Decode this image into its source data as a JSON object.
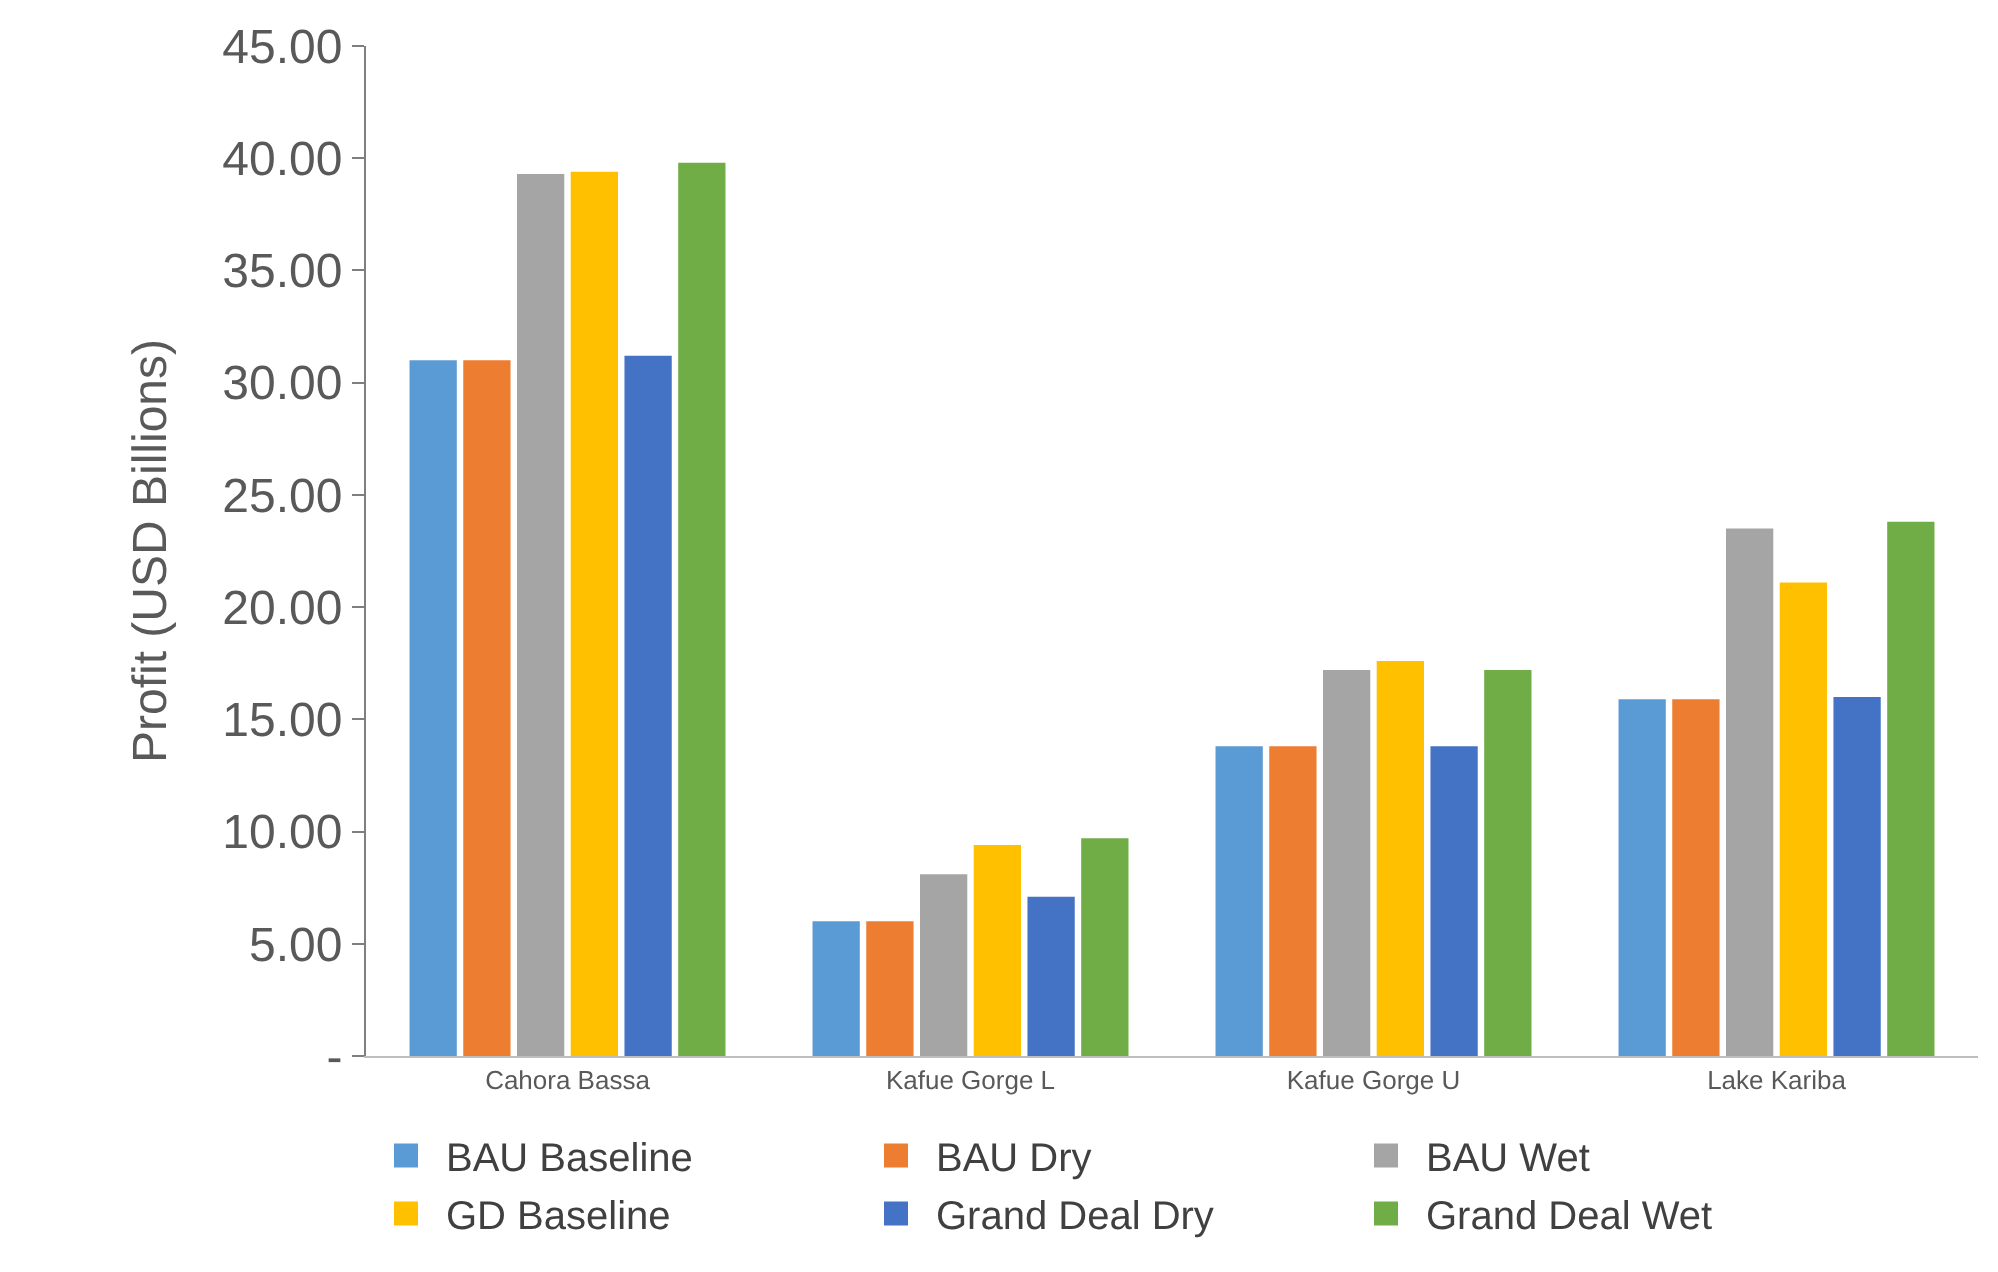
{
  "chart_data": {
    "type": "bar",
    "ylabel": "Profit (USD Billions)",
    "categories": [
      "Cahora Bassa",
      "Kafue Gorge L",
      "Kafue Gorge U",
      "Lake Kariba"
    ],
    "series": [
      {
        "name": "BAU Baseline",
        "color": "#5b9bd5",
        "values": [
          31.0,
          6.0,
          13.8,
          15.9
        ]
      },
      {
        "name": "BAU Dry",
        "color": "#ed7d31",
        "values": [
          31.0,
          6.0,
          13.8,
          15.9
        ]
      },
      {
        "name": "BAU Wet",
        "color": "#a5a5a5",
        "values": [
          39.3,
          8.1,
          17.2,
          23.5
        ]
      },
      {
        "name": "GD Baseline",
        "color": "#ffc000",
        "values": [
          39.4,
          9.4,
          17.6,
          21.1
        ]
      },
      {
        "name": "Grand Deal Dry",
        "color": "#4472c4",
        "values": [
          31.2,
          7.1,
          13.8,
          16.0
        ]
      },
      {
        "name": "Grand Deal Wet",
        "color": "#70ad47",
        "values": [
          39.8,
          9.7,
          17.2,
          23.8
        ]
      }
    ],
    "ylim": [
      0,
      45
    ],
    "yticks": [
      {
        "value": 0,
        "label": "-"
      },
      {
        "value": 5,
        "label": "5.00"
      },
      {
        "value": 10,
        "label": "10.00"
      },
      {
        "value": 15,
        "label": "15.00"
      },
      {
        "value": 20,
        "label": "20.00"
      },
      {
        "value": 25,
        "label": "25.00"
      },
      {
        "value": 30,
        "label": "30.00"
      },
      {
        "value": 35,
        "label": "35.00"
      },
      {
        "value": 40,
        "label": "40.00"
      },
      {
        "value": 45,
        "label": "45.00"
      }
    ],
    "grid": false,
    "legend": "bottom"
  }
}
